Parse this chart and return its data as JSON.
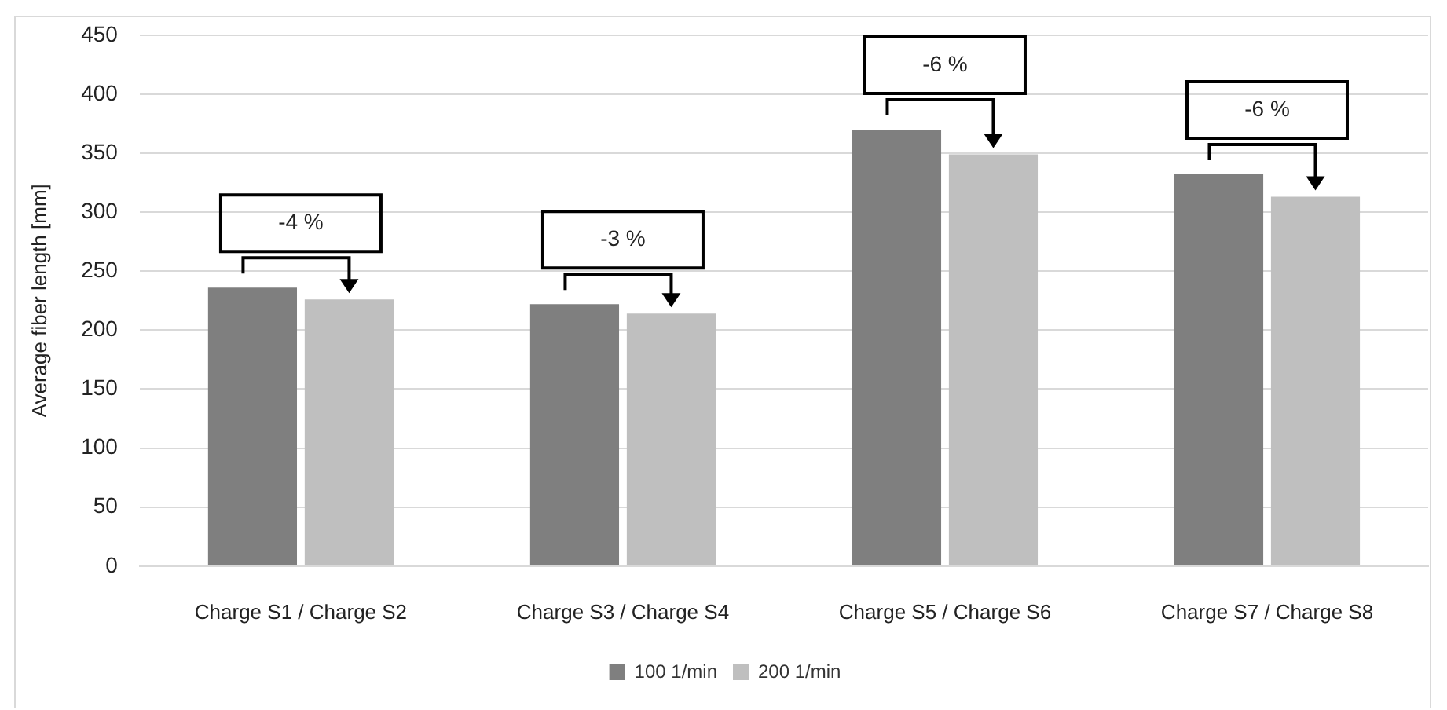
{
  "chart_data": {
    "type": "bar",
    "ylabel": "Average fiber length [mm]",
    "categories": [
      "Charge S1 / Charge S2",
      "Charge S3 / Charge S4",
      "Charge S5 / Charge S6",
      "Charge S7 / Charge S8"
    ],
    "series": [
      {
        "name": "100 1/min",
        "color": "#7f7f7f",
        "values": [
          236,
          222,
          370,
          332
        ]
      },
      {
        "name": "200 1/min",
        "color": "#bfbfbf",
        "values": [
          226,
          214,
          349,
          313
        ]
      }
    ],
    "ylim": [
      0,
      450
    ],
    "yticks": [
      0,
      50,
      100,
      150,
      200,
      250,
      300,
      350,
      400,
      450
    ],
    "grid": "y",
    "legend": "bottom",
    "annotations": [
      "-4 %",
      "-3 %",
      "-6 %",
      "-6 %"
    ]
  }
}
